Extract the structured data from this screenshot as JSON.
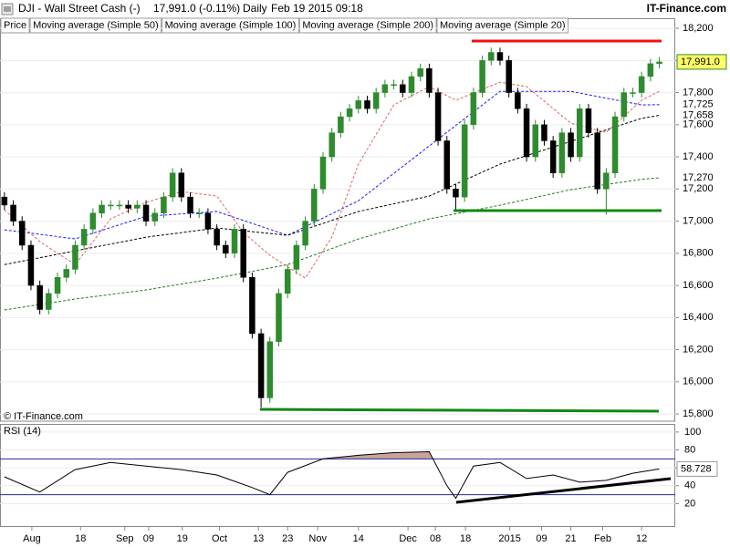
{
  "header": {
    "symbol": "DJI - Wall Street Cash (-)",
    "quote": "17,991.0 (-0.11%)",
    "period": "Daily",
    "timestamp": "Feb 19 2015 09:18",
    "brand": "IT-Finance.com",
    "copyright": "© IT-Finance.com"
  },
  "chart_data": [
    {
      "type": "candlestick",
      "name": "Price",
      "up_color": "#2e8b2e",
      "down_color": "#000000",
      "open": [
        17150,
        17100,
        17000,
        16850,
        16600,
        16450,
        16550,
        16650,
        16700,
        16850,
        16950,
        17050,
        17100,
        17100,
        17100,
        17080,
        17100,
        17000,
        17050,
        17150,
        17300,
        17150,
        17050,
        17050,
        16950,
        16850,
        16800,
        16950,
        16650,
        16300,
        15900,
        16250,
        16550,
        16700,
        16850,
        17000,
        17200,
        17400,
        17550,
        17650,
        17700,
        17750,
        17700,
        17800,
        17850,
        17850,
        17800,
        17900,
        17950,
        17800,
        17500,
        17200,
        17150,
        17600,
        17800,
        18000,
        18050,
        18000,
        17800,
        17700,
        17400,
        17600,
        17500,
        17300,
        17550,
        17400,
        17700,
        17550,
        17200,
        17300,
        17650,
        17800,
        17800,
        17900,
        17980
      ],
      "high": [
        17180,
        17130,
        17030,
        16880,
        16630,
        16580,
        16680,
        16730,
        16880,
        16980,
        17080,
        17130,
        17130,
        17130,
        17130,
        17130,
        17130,
        17080,
        17180,
        17330,
        17330,
        17180,
        17080,
        17080,
        16980,
        16880,
        16980,
        16980,
        16680,
        16330,
        16280,
        16580,
        16730,
        16880,
        17030,
        17230,
        17430,
        17580,
        17680,
        17730,
        17780,
        17780,
        17830,
        17880,
        17880,
        17880,
        17930,
        17980,
        17980,
        17830,
        17530,
        17230,
        17630,
        17830,
        18030,
        18080,
        18080,
        18030,
        17830,
        17730,
        17630,
        17630,
        17530,
        17580,
        17580,
        17730,
        17730,
        17580,
        17330,
        17680,
        17830,
        17830,
        17930,
        18010,
        18021
      ],
      "low": [
        17070,
        16970,
        16820,
        16570,
        16420,
        16420,
        16520,
        16620,
        16670,
        16820,
        16920,
        17020,
        17070,
        17070,
        17050,
        17050,
        16970,
        16970,
        17020,
        17120,
        17120,
        17020,
        17020,
        16920,
        16820,
        16770,
        16770,
        16620,
        16270,
        15840,
        15870,
        16220,
        16520,
        16670,
        16820,
        16970,
        17170,
        17370,
        17520,
        17620,
        17670,
        17670,
        17670,
        17770,
        17820,
        17770,
        17770,
        17870,
        17770,
        17470,
        17170,
        17060,
        17120,
        17570,
        17770,
        17970,
        17970,
        17770,
        17670,
        17370,
        17370,
        17470,
        17270,
        17270,
        17370,
        17370,
        17520,
        17170,
        17040,
        17270,
        17620,
        17770,
        17770,
        17870,
        17950
      ],
      "close": [
        17100,
        17000,
        16850,
        16600,
        16450,
        16550,
        16650,
        16700,
        16850,
        16950,
        17050,
        17100,
        17100,
        17100,
        17080,
        17100,
        17000,
        17050,
        17150,
        17300,
        17150,
        17050,
        17050,
        16950,
        16850,
        16800,
        16950,
        16650,
        16300,
        15900,
        16250,
        16550,
        16700,
        16850,
        17000,
        17200,
        17400,
        17550,
        17650,
        17700,
        17750,
        17700,
        17800,
        17850,
        17850,
        17800,
        17900,
        17950,
        17800,
        17500,
        17200,
        17150,
        17600,
        17800,
        18000,
        18050,
        18000,
        17800,
        17700,
        17400,
        17600,
        17500,
        17300,
        17550,
        17400,
        17700,
        17550,
        17200,
        17300,
        17650,
        17800,
        17800,
        17900,
        17980,
        17991.0
      ],
      "last_label": "17,991.0",
      "series": [
        {
          "name": "Moving average (Simple 50)",
          "color": "#1a1aff",
          "x": [
            0,
            8,
            16,
            24,
            32,
            40,
            48,
            56,
            64,
            72,
            74
          ],
          "values": [
            16946,
            16890,
            17030,
            17060,
            16912,
            17127,
            17468,
            17808,
            17808,
            17723,
            17725
          ],
          "last_label": "17,725"
        },
        {
          "name": "Moving average (Simple 100)",
          "color": "#000000",
          "x": [
            0,
            8,
            16,
            24,
            32,
            40,
            48,
            56,
            64,
            72,
            74
          ],
          "values": [
            16730,
            16815,
            16900,
            16957,
            16912,
            17060,
            17156,
            17355,
            17496,
            17640,
            17658
          ],
          "last_label": "17,658"
        },
        {
          "name": "Moving average (Simple 200)",
          "color": "#1f7a1f",
          "x": [
            0,
            8,
            16,
            24,
            32,
            40,
            48,
            56,
            64,
            72,
            74
          ],
          "values": [
            16447,
            16515,
            16572,
            16645,
            16730,
            16889,
            17014,
            17099,
            17196,
            17260,
            17270
          ],
          "last_label": "17,270"
        },
        {
          "name": "Moving average (Simple 20)",
          "color": "#e06666",
          "x": [
            0,
            4,
            8,
            12,
            16,
            20,
            24,
            27,
            30,
            34,
            37,
            40,
            44,
            48,
            51,
            56,
            59,
            64,
            68,
            72,
            74
          ],
          "values": [
            17071,
            16872,
            16730,
            17014,
            17116,
            17184,
            17156,
            16929,
            16787,
            16645,
            16901,
            17355,
            17723,
            17837,
            17752,
            17865,
            17837,
            17610,
            17553,
            17752,
            17808
          ]
        }
      ],
      "xlim": [
        -0.5,
        75.8
      ],
      "ylim": [
        15755,
        18172
      ],
      "yticks": [
        {
          "value": 15800,
          "label": "15,800"
        },
        {
          "value": 16000,
          "label": "16,000"
        },
        {
          "value": 16200,
          "label": "16,200"
        },
        {
          "value": 16400,
          "label": "16,400"
        },
        {
          "value": 16600,
          "label": "16,600"
        },
        {
          "value": 16800,
          "label": "16,800"
        },
        {
          "value": 17000,
          "label": "17,000"
        },
        {
          "value": 17200,
          "label": "17,200"
        },
        {
          "value": 17400,
          "label": "17,400"
        },
        {
          "value": 17600,
          "label": "17,600"
        },
        {
          "value": 17800,
          "label": "17,800"
        },
        {
          "value": 18000,
          "label": "18,000"
        },
        {
          "value": 18200,
          "label": "18,200"
        }
      ],
      "xticks": [
        {
          "value": 3.1,
          "label": "Aug"
        },
        {
          "value": 8.6,
          "label": "18"
        },
        {
          "value": 13.6,
          "label": "Sep"
        },
        {
          "value": 16.3,
          "label": "09"
        },
        {
          "value": 20.1,
          "label": "19"
        },
        {
          "value": 24.3,
          "label": "Oct"
        },
        {
          "value": 28.7,
          "label": "13"
        },
        {
          "value": 32,
          "label": "23"
        },
        {
          "value": 35.4,
          "label": "Nov"
        },
        {
          "value": 40,
          "label": "14"
        },
        {
          "value": 45.6,
          "label": "Dec"
        },
        {
          "value": 48.7,
          "label": "08"
        },
        {
          "value": 52.1,
          "label": "18"
        },
        {
          "value": 57.1,
          "label": "2015"
        },
        {
          "value": 60.7,
          "label": "09"
        },
        {
          "value": 64,
          "label": "21"
        },
        {
          "value": 67.6,
          "label": "Feb"
        },
        {
          "value": 72,
          "label": "12"
        }
      ],
      "grid": true
    },
    {
      "type": "line",
      "title": "RSI (14)",
      "color": "#000000",
      "band_color": "#2a2a9a",
      "overbought_fill": "#c9a39a",
      "x": [
        0,
        4,
        8,
        12,
        16,
        20,
        24,
        28,
        30,
        32,
        36,
        40,
        44,
        48,
        50,
        51,
        53,
        56,
        59,
        62,
        65,
        68,
        71,
        74
      ],
      "values": [
        50,
        33,
        58,
        66,
        62,
        58,
        52,
        38,
        30,
        55,
        70,
        74,
        77,
        78,
        40,
        26,
        62,
        66,
        48,
        52,
        44,
        46,
        54,
        58.728
      ],
      "last_label": "58.728",
      "bands": [
        30,
        70
      ],
      "xlim": [
        -0.5,
        75.8
      ],
      "ylim": [
        -6,
        108
      ],
      "yticks": [
        20,
        40,
        60,
        80,
        100
      ],
      "grid": true
    }
  ]
}
